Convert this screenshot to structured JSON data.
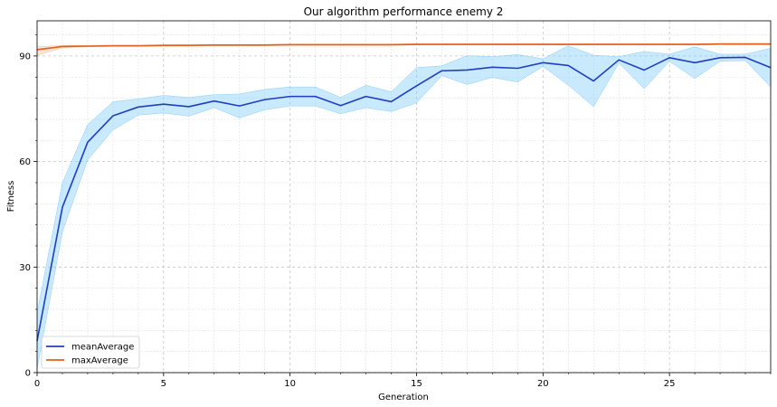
{
  "chart_data": {
    "type": "line",
    "title": "Our algorithm performance enemy 2",
    "xlabel": "Generation",
    "ylabel": "Fitness",
    "xlim": [
      0,
      29
    ],
    "ylim": [
      0,
      100
    ],
    "xticks": [
      0,
      5,
      10,
      15,
      20,
      25
    ],
    "yticks": [
      0,
      30,
      60,
      90
    ],
    "grid": true,
    "legend_position": "lower-left",
    "x": [
      0,
      1,
      2,
      3,
      4,
      5,
      6,
      7,
      8,
      9,
      10,
      11,
      12,
      13,
      14,
      15,
      16,
      17,
      18,
      19,
      20,
      21,
      22,
      23,
      24,
      25,
      26,
      27,
      28,
      29
    ],
    "series": [
      {
        "name": "meanAverage",
        "color": "#1f3fbf",
        "band_color": "#87cefa",
        "values": [
          9,
          47,
          65.5,
          73,
          75.5,
          76.3,
          75.6,
          77.2,
          75.8,
          77.6,
          78.5,
          78.5,
          75.9,
          78.5,
          77.0,
          81.5,
          85.8,
          86.0,
          86.8,
          86.5,
          88.1,
          87.3,
          82.9,
          88.9,
          86.0,
          89.5,
          88.1,
          89.5,
          89.6,
          86.7
        ],
        "upper": [
          17,
          54,
          70.5,
          77.0,
          77.8,
          78.8,
          78.2,
          79.0,
          79.2,
          80.5,
          81.2,
          81.2,
          78.2,
          81.7,
          79.8,
          86.7,
          87.2,
          90.1,
          89.8,
          90.4,
          89.2,
          92.9,
          90.2,
          89.8,
          91.3,
          90.5,
          92.6,
          90.5,
          90.5,
          92.2
        ],
        "lower": [
          1,
          40,
          60.5,
          69.0,
          73.2,
          73.8,
          72.9,
          75.3,
          72.4,
          74.7,
          75.8,
          75.8,
          73.6,
          75.3,
          74.2,
          76.7,
          84.4,
          81.9,
          83.9,
          82.6,
          87.0,
          81.7,
          75.6,
          88.0,
          80.7,
          88.5,
          83.6,
          88.5,
          88.7,
          81.2
        ]
      },
      {
        "name": "maxAverage",
        "color": "#e06020",
        "band_color": "#f9c5a0",
        "values": [
          91.8,
          92.7,
          92.8,
          92.9,
          92.9,
          93.0,
          93.0,
          93.1,
          93.1,
          93.1,
          93.2,
          93.2,
          93.2,
          93.2,
          93.2,
          93.3,
          93.3,
          93.3,
          93.3,
          93.3,
          93.3,
          93.3,
          93.3,
          93.3,
          93.3,
          93.3,
          93.3,
          93.4,
          93.4,
          93.4
        ],
        "upper": [
          92.6,
          93.0,
          93.0,
          93.1,
          93.1,
          93.2,
          93.2,
          93.3,
          93.3,
          93.3,
          93.4,
          93.4,
          93.4,
          93.4,
          93.4,
          93.5,
          93.5,
          93.5,
          93.5,
          93.5,
          93.5,
          93.5,
          93.5,
          93.5,
          93.5,
          93.5,
          93.5,
          93.6,
          93.6,
          93.6
        ],
        "lower": [
          90.2,
          92.3,
          92.6,
          92.7,
          92.7,
          92.8,
          92.8,
          92.9,
          92.9,
          92.9,
          93.0,
          93.0,
          93.0,
          93.0,
          93.0,
          93.1,
          93.1,
          93.1,
          93.1,
          93.1,
          93.1,
          93.1,
          93.1,
          93.1,
          93.1,
          93.1,
          93.1,
          93.2,
          93.2,
          93.2
        ]
      }
    ]
  }
}
